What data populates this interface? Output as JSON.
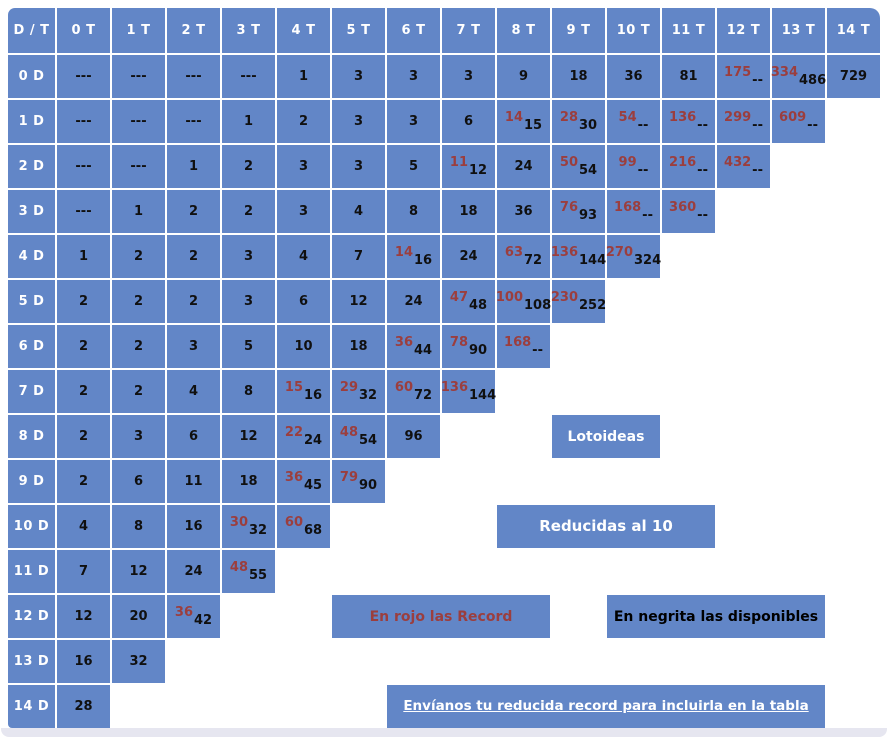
{
  "colors": {
    "cell_blue": "#6286c7",
    "record_red": "#9b3e3e",
    "value_black": "#101010",
    "header_text": "#ffffff",
    "panel_edge": "#e6e6f0"
  },
  "table": {
    "corner_label": "D / T",
    "col_headers": [
      "0 T",
      "1 T",
      "2 T",
      "3 T",
      "4 T",
      "5 T",
      "6 T",
      "7 T",
      "8 T",
      "9 T",
      "10 T",
      "11 T",
      "12 T",
      "13 T",
      "14 T"
    ],
    "row_headers": [
      "0 D",
      "1 D",
      "2 D",
      "3 D",
      "4 D",
      "5 D",
      "6 D",
      "7 D",
      "8 D",
      "9 D",
      "10 D",
      "11 D",
      "12 D",
      "13 D",
      "14 D"
    ],
    "cells": [
      [
        {
          "v": "---"
        },
        {
          "v": "---"
        },
        {
          "v": "---"
        },
        {
          "v": "---"
        },
        {
          "v": "1"
        },
        {
          "v": "3"
        },
        {
          "v": "3"
        },
        {
          "v": "3"
        },
        {
          "v": "9"
        },
        {
          "v": "18"
        },
        {
          "v": "36"
        },
        {
          "v": "81"
        },
        {
          "r": "175",
          "s": "--"
        },
        {
          "r": "334",
          "s": "486"
        },
        {
          "v": "729"
        }
      ],
      [
        {
          "v": "---"
        },
        {
          "v": "---"
        },
        {
          "v": "---"
        },
        {
          "v": "1"
        },
        {
          "v": "2"
        },
        {
          "v": "3"
        },
        {
          "v": "3"
        },
        {
          "v": "6"
        },
        {
          "r": "14",
          "s": "15"
        },
        {
          "r": "28",
          "s": "30"
        },
        {
          "r": "54",
          "s": "--"
        },
        {
          "r": "136",
          "s": "--"
        },
        {
          "r": "299",
          "s": "--"
        },
        {
          "r": "609",
          "s": "--"
        },
        null
      ],
      [
        {
          "v": "---"
        },
        {
          "v": "---"
        },
        {
          "v": "1"
        },
        {
          "v": "2"
        },
        {
          "v": "3"
        },
        {
          "v": "3"
        },
        {
          "v": "5"
        },
        {
          "r": "11",
          "s": "12"
        },
        {
          "v": "24"
        },
        {
          "r": "50",
          "s": "54"
        },
        {
          "r": "99",
          "s": "--"
        },
        {
          "r": "216",
          "s": "--"
        },
        {
          "r": "432",
          "s": "--"
        },
        null,
        null
      ],
      [
        {
          "v": "---"
        },
        {
          "v": "1"
        },
        {
          "v": "2"
        },
        {
          "v": "2"
        },
        {
          "v": "3"
        },
        {
          "v": "4"
        },
        {
          "v": "8"
        },
        {
          "v": "18"
        },
        {
          "v": "36"
        },
        {
          "r": "76",
          "s": "93"
        },
        {
          "r": "168",
          "s": "--"
        },
        {
          "r": "360",
          "s": "--"
        },
        null,
        null,
        null
      ],
      [
        {
          "v": "1"
        },
        {
          "v": "2"
        },
        {
          "v": "2"
        },
        {
          "v": "3"
        },
        {
          "v": "4"
        },
        {
          "v": "7"
        },
        {
          "r": "14",
          "s": "16"
        },
        {
          "v": "24"
        },
        {
          "r": "63",
          "s": "72"
        },
        {
          "r": "136",
          "s": "144"
        },
        {
          "r": "270",
          "s": "324"
        },
        null,
        null,
        null,
        null
      ],
      [
        {
          "v": "2"
        },
        {
          "v": "2"
        },
        {
          "v": "2"
        },
        {
          "v": "3"
        },
        {
          "v": "6"
        },
        {
          "v": "12"
        },
        {
          "v": "24"
        },
        {
          "r": "47",
          "s": "48"
        },
        {
          "r": "100",
          "s": "108"
        },
        {
          "r": "230",
          "s": "252"
        },
        null,
        null,
        null,
        null,
        null
      ],
      [
        {
          "v": "2"
        },
        {
          "v": "2"
        },
        {
          "v": "3"
        },
        {
          "v": "5"
        },
        {
          "v": "10"
        },
        {
          "v": "18"
        },
        {
          "r": "36",
          "s": "44"
        },
        {
          "r": "78",
          "s": "90"
        },
        {
          "r": "168",
          "s": "--"
        },
        null,
        null,
        null,
        null,
        null,
        null
      ],
      [
        {
          "v": "2"
        },
        {
          "v": "2"
        },
        {
          "v": "4"
        },
        {
          "v": "8"
        },
        {
          "r": "15",
          "s": "16"
        },
        {
          "r": "29",
          "s": "32"
        },
        {
          "r": "60",
          "s": "72"
        },
        {
          "r": "136",
          "s": "144"
        },
        null,
        null,
        null,
        null,
        null,
        null,
        null
      ],
      [
        {
          "v": "2"
        },
        {
          "v": "3"
        },
        {
          "v": "6"
        },
        {
          "v": "12"
        },
        {
          "r": "22",
          "s": "24"
        },
        {
          "r": "48",
          "s": "54"
        },
        {
          "v": "96"
        },
        null,
        null,
        null,
        null,
        null,
        null,
        null,
        null
      ],
      [
        {
          "v": "2"
        },
        {
          "v": "6"
        },
        {
          "v": "11"
        },
        {
          "v": "18"
        },
        {
          "r": "36",
          "s": "45"
        },
        {
          "r": "79",
          "s": "90"
        },
        null,
        null,
        null,
        null,
        null,
        null,
        null,
        null,
        null
      ],
      [
        {
          "v": "4"
        },
        {
          "v": "8"
        },
        {
          "v": "16"
        },
        {
          "r": "30",
          "s": "32"
        },
        {
          "r": "60",
          "s": "68"
        },
        null,
        null,
        null,
        null,
        null,
        null,
        null,
        null,
        null,
        null
      ],
      [
        {
          "v": "7"
        },
        {
          "v": "12"
        },
        {
          "v": "24"
        },
        {
          "r": "48",
          "s": "55"
        },
        null,
        null,
        null,
        null,
        null,
        null,
        null,
        null,
        null,
        null,
        null
      ],
      [
        {
          "v": "12"
        },
        {
          "v": "20"
        },
        {
          "r": "36",
          "s": "42"
        },
        null,
        null,
        null,
        null,
        null,
        null,
        null,
        null,
        null,
        null,
        null,
        null
      ],
      [
        {
          "v": "16"
        },
        {
          "v": "32"
        },
        null,
        null,
        null,
        null,
        null,
        null,
        null,
        null,
        null,
        null,
        null,
        null,
        null
      ],
      [
        {
          "v": "28"
        },
        null,
        null,
        null,
        null,
        null,
        null,
        null,
        null,
        null,
        null,
        null,
        null,
        null,
        null
      ]
    ]
  },
  "banners": {
    "lotoideas": "Lotoideas",
    "reducidas": "Reducidas al 10",
    "rojo": "En rojo las Record",
    "negrita": "En negrita las disponibles",
    "envianos": "Envíanos tu reducida record para incluirla en la tabla"
  }
}
